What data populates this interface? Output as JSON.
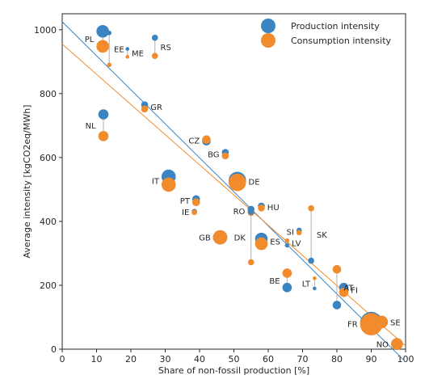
{
  "chart_data": {
    "type": "scatter",
    "xlabel": "Share of non-fossil production [%]",
    "ylabel": "Average intensity [kgCO2eq/MWh]",
    "xlim": [
      0,
      100
    ],
    "ylim": [
      0,
      1050
    ],
    "x_ticks": [
      "0",
      "10",
      "20",
      "30",
      "40",
      "50",
      "60",
      "70",
      "80",
      "90",
      "100"
    ],
    "y_ticks": [
      "0",
      "200",
      "400",
      "600",
      "800",
      "1000"
    ],
    "grid": false,
    "legend_position": "top-right",
    "colors": {
      "production": "#3a84c1",
      "consumption": "#f28b2b",
      "connector": "#b0b0b0"
    },
    "series": [
      {
        "name": "Production intensity",
        "key": "production"
      },
      {
        "name": "Consumption intensity",
        "key": "consumption"
      }
    ],
    "trendlines": [
      {
        "series": "production",
        "x": [
          0,
          100
        ],
        "y": [
          1025,
          -40
        ]
      },
      {
        "series": "consumption",
        "x": [
          0,
          100
        ],
        "y": [
          955,
          10
        ]
      }
    ],
    "countries": [
      {
        "code": "PL",
        "x": 11.8,
        "prod": 995,
        "cons": 948,
        "size": 14,
        "label_side": "left"
      },
      {
        "code": "EE",
        "x": 13.7,
        "prod": 990,
        "cons": 890,
        "size": 4,
        "label_side": "right"
      },
      {
        "code": "ME",
        "x": 19.0,
        "prod": 940,
        "cons": 915,
        "size": 3,
        "label_side": "right"
      },
      {
        "code": "RS",
        "x": 27.0,
        "prod": 975,
        "cons": 918,
        "size": 6,
        "label_side": "right"
      },
      {
        "code": "NL",
        "x": 12.0,
        "prod": 735,
        "cons": 667,
        "size": 11,
        "label_side": "left"
      },
      {
        "code": "GR",
        "x": 24.0,
        "prod": 765,
        "cons": 752,
        "size": 7,
        "label_side": "right"
      },
      {
        "code": "CZ",
        "x": 42.0,
        "prod": 651,
        "cons": 656,
        "size": 9,
        "label_side": "left"
      },
      {
        "code": "BG",
        "x": 47.5,
        "prod": 616,
        "cons": 605,
        "size": 7,
        "label_side": "left"
      },
      {
        "code": "IT",
        "x": 31.0,
        "prod": 540,
        "cons": 515,
        "size": 16,
        "label_side": "left"
      },
      {
        "code": "DE",
        "x": 51.0,
        "prod": 528,
        "cons": 522,
        "size": 20,
        "label_side": "right"
      },
      {
        "code": "PT",
        "x": 39.0,
        "prod": 470,
        "cons": 460,
        "size": 8,
        "label_side": "left"
      },
      {
        "code": "IE",
        "x": 38.5,
        "prod": 431,
        "cons": 428,
        "size": 5,
        "label_side": "left"
      },
      {
        "code": "HU",
        "x": 58.0,
        "prod": 448,
        "cons": 442,
        "size": 7,
        "label_side": "right"
      },
      {
        "code": "RO",
        "x": 55.0,
        "prod": 438,
        "cons": 428,
        "size": 7,
        "label_side": "left"
      },
      {
        "code": "GB",
        "x": 46.0,
        "prod": 350,
        "cons": 350,
        "size": 16,
        "label_side": "left"
      },
      {
        "code": "ES",
        "x": 58.0,
        "prod": 345,
        "cons": 330,
        "size": 14,
        "label_side": "right"
      },
      {
        "code": "DK",
        "x": 55.0,
        "prod": 430,
        "cons": 272,
        "size": 6,
        "label_side": "left"
      },
      {
        "code": "SK",
        "x": 72.5,
        "prod": 277,
        "cons": 441,
        "size": 6,
        "label_side": "right"
      },
      {
        "code": "SI",
        "x": 69.0,
        "prod": 372,
        "cons": 365,
        "size": 5,
        "label_side": "left"
      },
      {
        "code": "LV",
        "x": 65.5,
        "prod": 325,
        "cons": 340,
        "size": 4,
        "label_side": "right"
      },
      {
        "code": "BE",
        "x": 65.5,
        "prod": 193,
        "cons": 238,
        "size": 10,
        "label_side": "left"
      },
      {
        "code": "LT",
        "x": 73.5,
        "prod": 190,
        "cons": 222,
        "size": 3,
        "label_side": "left"
      },
      {
        "code": "AT",
        "x": 80.0,
        "prod": 138,
        "cons": 250,
        "size": 9,
        "label_side": "right"
      },
      {
        "code": "FI",
        "x": 82.0,
        "prod": 193,
        "cons": 178,
        "size": 10,
        "label_side": "right"
      },
      {
        "code": "FR",
        "x": 90.0,
        "prod": 82,
        "cons": 78,
        "size": 26,
        "label_side": "left"
      },
      {
        "code": "SE",
        "x": 93.0,
        "prod": 85,
        "cons": 85,
        "size": 14,
        "label_side": "right"
      },
      {
        "code": "NO",
        "x": 97.5,
        "prod": 16,
        "cons": 16,
        "size": 13,
        "label_side": "left"
      }
    ]
  }
}
